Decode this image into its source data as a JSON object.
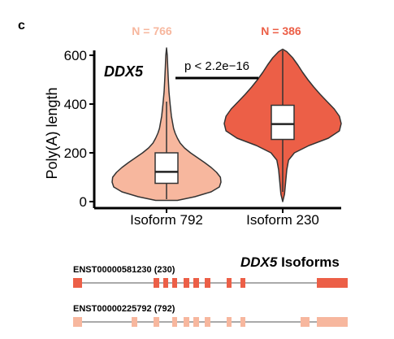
{
  "panel_label": "c",
  "colors": {
    "isoform_792": "#f7b79e",
    "isoform_230": "#ec5f47",
    "outline": "#333333",
    "text": "#000000"
  },
  "chart_data": [
    {
      "type": "violin",
      "gene_label": "DDX5",
      "ylabel": "Poly(A) length",
      "ylim": [
        0,
        620
      ],
      "yticks": [
        "0",
        "200",
        "400",
        "600"
      ],
      "categories": [
        "Isoform 792",
        "Isoform 230"
      ],
      "counts": [
        "N = 766",
        "N = 386"
      ],
      "comparison_text": "p < 2.2e−16",
      "series": [
        {
          "category": "Isoform 792",
          "color": "#f7b79e",
          "box": {
            "whisker_low": 10,
            "q1": 75,
            "median": 122,
            "q3": 200,
            "whisker_high": 410
          },
          "range": [
            5,
            630
          ],
          "density": [
            [
              5,
              0.2
            ],
            [
              20,
              0.52
            ],
            [
              40,
              0.82
            ],
            [
              60,
              0.97
            ],
            [
              80,
              1.0
            ],
            [
              100,
              0.99
            ],
            [
              120,
              0.92
            ],
            [
              140,
              0.82
            ],
            [
              160,
              0.7
            ],
            [
              180,
              0.57
            ],
            [
              200,
              0.44
            ],
            [
              220,
              0.33
            ],
            [
              240,
              0.25
            ],
            [
              260,
              0.2
            ],
            [
              280,
              0.16
            ],
            [
              300,
              0.13
            ],
            [
              350,
              0.09
            ],
            [
              400,
              0.065
            ],
            [
              450,
              0.045
            ],
            [
              500,
              0.033
            ],
            [
              550,
              0.022
            ],
            [
              600,
              0.013
            ],
            [
              630,
              0.0
            ]
          ]
        },
        {
          "category": "Isoform 230",
          "color": "#ec5f47",
          "box": {
            "whisker_low": 40,
            "q1": 255,
            "median": 318,
            "q3": 395,
            "whisker_high": 620
          },
          "range": [
            0,
            625
          ],
          "density": [
            [
              0,
              0.0
            ],
            [
              30,
              0.03
            ],
            [
              80,
              0.05
            ],
            [
              130,
              0.07
            ],
            [
              170,
              0.1
            ],
            [
              200,
              0.2
            ],
            [
              230,
              0.45
            ],
            [
              260,
              0.78
            ],
            [
              290,
              0.97
            ],
            [
              320,
              1.0
            ],
            [
              350,
              0.97
            ],
            [
              380,
              0.88
            ],
            [
              410,
              0.76
            ],
            [
              440,
              0.64
            ],
            [
              470,
              0.53
            ],
            [
              500,
              0.43
            ],
            [
              530,
              0.34
            ],
            [
              560,
              0.26
            ],
            [
              590,
              0.17
            ],
            [
              615,
              0.07
            ],
            [
              625,
              0.0
            ]
          ]
        }
      ]
    },
    {
      "type": "gene_structure",
      "title_italic": "DDX5",
      "title_rest": " Isoforms",
      "tracks": [
        {
          "label": "ENST00000581230 (230)",
          "color": "#ec5f47"
        },
        {
          "label": "ENST00000225792 (792)",
          "color": "#f7b79e"
        }
      ]
    }
  ]
}
